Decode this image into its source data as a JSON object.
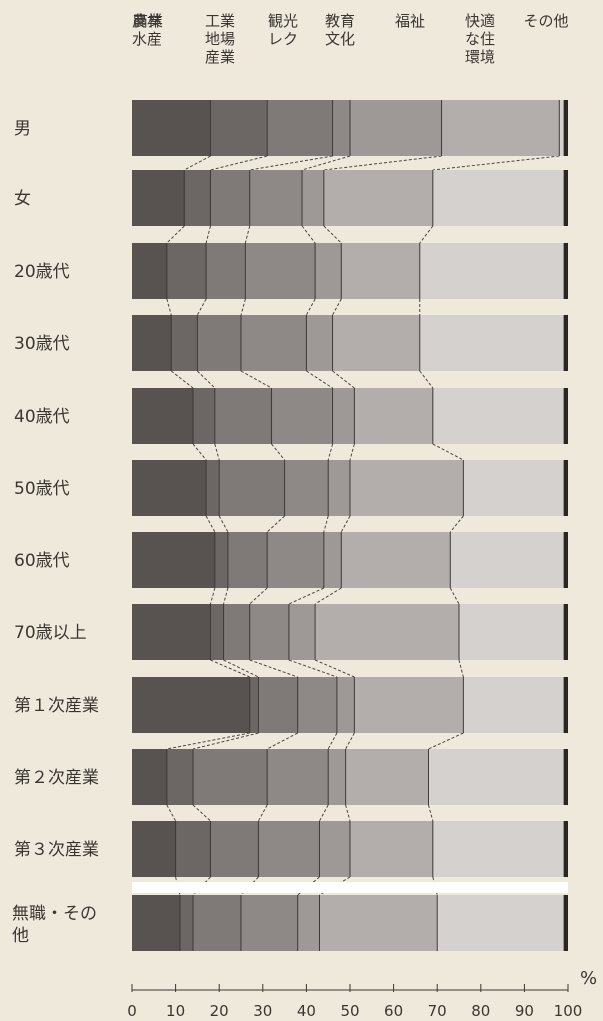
{
  "chart_data": {
    "type": "bar",
    "stacked": true,
    "orientation": "horizontal",
    "title": "",
    "xlabel": "",
    "ylabel": "",
    "unit": "%",
    "xlim": [
      0,
      100
    ],
    "xticks": [
      0,
      10,
      20,
      30,
      40,
      50,
      60,
      70,
      80,
      90,
      100
    ],
    "categories": [
      "男",
      "女",
      "20歳代",
      "30歳代",
      "40歳代",
      "50歳代",
      "60歳代",
      "70歳以上",
      "第１次産業",
      "第２次産業",
      "第３次産業",
      "無職・その他"
    ],
    "segment_labels": [
      [
        "農林",
        "水産"
      ],
      [
        "商業"
      ],
      [
        "工業",
        "地場",
        "産業"
      ],
      [
        "観光",
        "レク"
      ],
      [
        "教育",
        "文化"
      ],
      [
        "福祉"
      ],
      [
        "快適",
        "な住",
        "環境"
      ],
      [
        "その他"
      ]
    ],
    "boundaries": [
      [
        18,
        31,
        46,
        50,
        71,
        98
      ],
      [
        12,
        18,
        27,
        39,
        44,
        69
      ],
      [
        8,
        17,
        26,
        42,
        48,
        66
      ],
      [
        9,
        15,
        25,
        40,
        46,
        66
      ],
      [
        14,
        19,
        32,
        46,
        51,
        69
      ],
      [
        17,
        20,
        35,
        45,
        50,
        76
      ],
      [
        19,
        22,
        31,
        44,
        48,
        73
      ],
      [
        18,
        21,
        27,
        36,
        42,
        75
      ],
      [
        27,
        29,
        38,
        47,
        51,
        76
      ],
      [
        8,
        14,
        31,
        45,
        49,
        68
      ],
      [
        10,
        18,
        29,
        43,
        50,
        69
      ],
      [
        11,
        14,
        25,
        38,
        43,
        70
      ]
    ],
    "end_of_bar": [
      99,
      99,
      99,
      99,
      99,
      99,
      99,
      99,
      99,
      99,
      99,
      99
    ],
    "colors": [
      "#585250",
      "#6c6664",
      "#7f7977",
      "#8e8886",
      "#9e9896",
      "#b3aeab",
      "#d5d1ce",
      "#2a2624"
    ],
    "bar_separator_color": "#ffffff"
  }
}
